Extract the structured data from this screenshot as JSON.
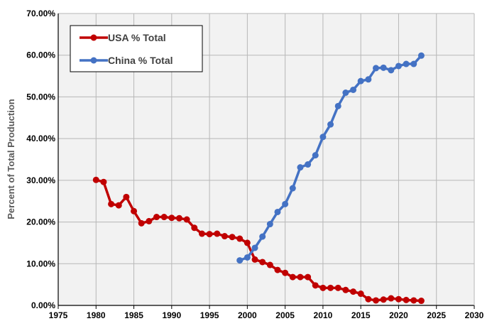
{
  "chart_data": {
    "type": "line",
    "title": "",
    "xlabel": "",
    "ylabel": "Percent of Total Production",
    "xlim": [
      1975,
      2030
    ],
    "ylim": [
      0,
      0.7
    ],
    "x_ticks": [
      "1975",
      "1980",
      "1985",
      "1990",
      "1995",
      "2000",
      "2005",
      "2010",
      "2015",
      "2020",
      "2025",
      "2030"
    ],
    "y_ticks": [
      "0.00%",
      "10.00%",
      "20.00%",
      "30.00%",
      "40.00%",
      "50.00%",
      "60.00%",
      "70.00%"
    ],
    "grid": true,
    "plot_background": "#f2f2f2",
    "legend_position": "top-left",
    "series": [
      {
        "name": "USA % Total",
        "color": "#c00000",
        "x": [
          1980,
          1981,
          1982,
          1983,
          1984,
          1985,
          1986,
          1987,
          1988,
          1989,
          1990,
          1991,
          1992,
          1993,
          1994,
          1995,
          1996,
          1997,
          1998,
          1999,
          2000,
          2001,
          2002,
          2003,
          2004,
          2005,
          2006,
          2007,
          2008,
          2009,
          2010,
          2011,
          2012,
          2013,
          2014,
          2015,
          2016,
          2017,
          2018,
          2019,
          2020,
          2021,
          2022,
          2023
        ],
        "y": [
          0.301,
          0.296,
          0.243,
          0.24,
          0.26,
          0.226,
          0.197,
          0.202,
          0.212,
          0.212,
          0.21,
          0.209,
          0.206,
          0.186,
          0.172,
          0.171,
          0.172,
          0.166,
          0.164,
          0.16,
          0.15,
          0.11,
          0.104,
          0.097,
          0.085,
          0.078,
          0.068,
          0.068,
          0.068,
          0.048,
          0.042,
          0.042,
          0.042,
          0.037,
          0.033,
          0.028,
          0.015,
          0.012,
          0.014,
          0.017,
          0.015,
          0.013,
          0.012,
          0.011
        ]
      },
      {
        "name": "China % Total",
        "color": "#4472c4",
        "x": [
          1999,
          2000,
          2001,
          2002,
          2003,
          2004,
          2005,
          2006,
          2007,
          2008,
          2009,
          2010,
          2011,
          2012,
          2013,
          2014,
          2015,
          2016,
          2017,
          2018,
          2019,
          2020,
          2021,
          2022,
          2023
        ],
        "y": [
          0.108,
          0.115,
          0.138,
          0.165,
          0.195,
          0.224,
          0.243,
          0.281,
          0.331,
          0.338,
          0.36,
          0.404,
          0.434,
          0.478,
          0.51,
          0.517,
          0.538,
          0.542,
          0.569,
          0.57,
          0.564,
          0.574,
          0.579,
          0.579,
          0.599
        ]
      }
    ]
  }
}
